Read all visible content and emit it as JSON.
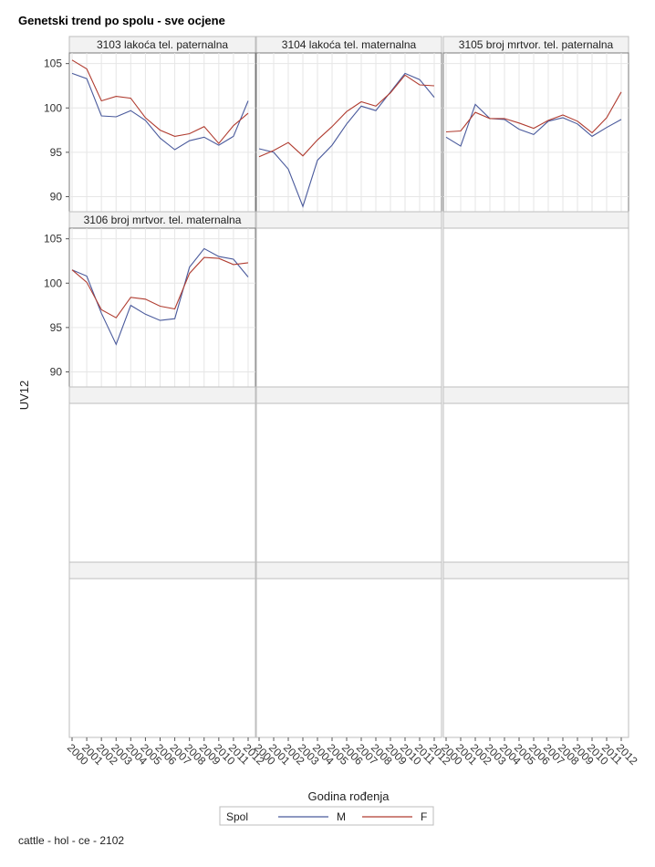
{
  "title": "Genetski trend po spolu - sve ocjene",
  "footnote": "cattle - hol - ce - 2102",
  "chart_data": {
    "type": "line",
    "title": "Genetski trend po spolu - sve ocjene",
    "xlabel": "Godina rođenja",
    "ylabel": "UV12",
    "x": [
      "2000",
      "2001",
      "2002",
      "2003",
      "2004",
      "2005",
      "2006",
      "2007",
      "2008",
      "2009",
      "2010",
      "2011",
      "2012"
    ],
    "ylim": [
      88.3,
      106.2
    ],
    "yticks": [
      90,
      95,
      100,
      105
    ],
    "grid": true,
    "legend": {
      "title": "Spol",
      "placement": "bottom",
      "entries": [
        {
          "name": "M",
          "color": "#4a5a9c"
        },
        {
          "name": "F",
          "color": "#b03c30"
        }
      ]
    },
    "panels": [
      {
        "label": "3103 lakoća tel. paternalna",
        "series": [
          {
            "name": "M",
            "values": [
              103.9,
              103.3,
              99.1,
              99.0,
              99.7,
              98.6,
              96.6,
              95.3,
              96.3,
              96.7,
              95.8,
              96.8,
              100.8
            ]
          },
          {
            "name": "F",
            "values": [
              105.4,
              104.4,
              100.8,
              101.3,
              101.1,
              98.9,
              97.5,
              96.8,
              97.1,
              97.9,
              96.0,
              98.0,
              99.4
            ]
          }
        ]
      },
      {
        "label": "3104 lakoća tel. maternalna",
        "series": [
          {
            "name": "M",
            "values": [
              95.4,
              95.0,
              93.1,
              88.9,
              94.1,
              95.8,
              98.2,
              100.2,
              99.7,
              101.8,
              103.9,
              103.2,
              101.2
            ]
          },
          {
            "name": "F",
            "values": [
              94.5,
              95.2,
              96.1,
              94.6,
              96.4,
              97.9,
              99.6,
              100.7,
              100.2,
              101.7,
              103.7,
              102.6,
              102.5
            ]
          }
        ]
      },
      {
        "label": "3105 broj mrtvor. tel. paternalna",
        "series": [
          {
            "name": "M",
            "values": [
              96.7,
              95.7,
              100.4,
              98.8,
              98.7,
              97.6,
              97.0,
              98.5,
              98.9,
              98.2,
              96.8,
              97.8,
              98.7
            ]
          },
          {
            "name": "F",
            "values": [
              97.3,
              97.4,
              99.5,
              98.8,
              98.8,
              98.3,
              97.7,
              98.6,
              99.2,
              98.5,
              97.2,
              98.9,
              101.8
            ]
          }
        ]
      },
      {
        "label": "3106 broj mrtvor. tel. maternalna",
        "series": [
          {
            "name": "M",
            "values": [
              101.5,
              100.8,
              96.6,
              93.1,
              97.5,
              96.5,
              95.8,
              96.0,
              101.8,
              103.9,
              103.0,
              102.7,
              100.7
            ]
          },
          {
            "name": "F",
            "values": [
              101.5,
              100.1,
              97.0,
              96.1,
              98.4,
              98.2,
              97.4,
              97.1,
              101.1,
              102.9,
              102.8,
              102.1,
              102.3
            ]
          }
        ]
      }
    ]
  }
}
